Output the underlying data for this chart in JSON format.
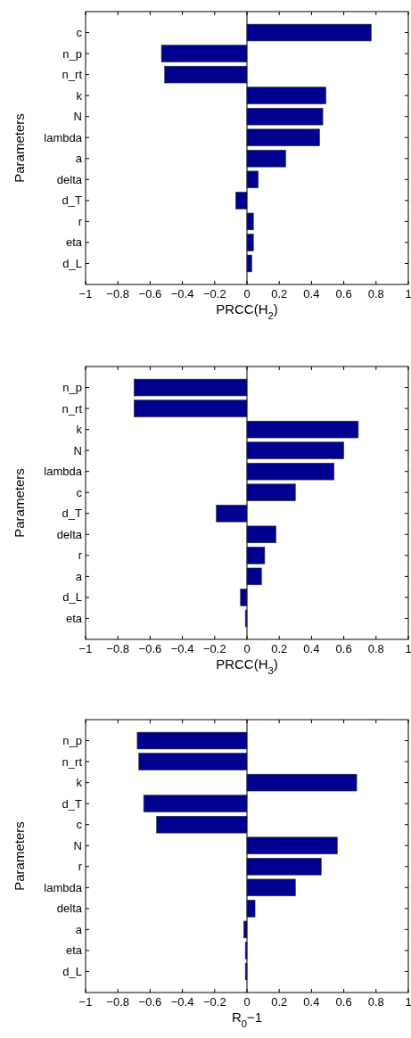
{
  "chart_data": [
    {
      "type": "bar",
      "orientation": "horizontal",
      "xlabel": "PRCC(H$_{2}$)",
      "ylabel": "Parameters",
      "categories": [
        "c",
        "n_p",
        "n_rt",
        "k",
        "N",
        "lambda",
        "a",
        "delta",
        "d_T",
        "r",
        "eta",
        "d_L"
      ],
      "values": [
        0.77,
        -0.53,
        -0.51,
        0.49,
        0.47,
        0.45,
        0.24,
        0.07,
        -0.07,
        0.04,
        0.04,
        0.03
      ],
      "color": "#00008f",
      "xlim": [
        -1,
        1
      ],
      "xticks": [
        -1,
        -0.8,
        -0.6,
        -0.4,
        -0.2,
        0,
        0.2,
        0.4,
        0.6,
        0.8,
        1
      ],
      "ref_lines": [
        {
          "axis": "x",
          "value": 0,
          "color": "#000000"
        }
      ],
      "grid": false
    },
    {
      "type": "bar",
      "orientation": "horizontal",
      "xlabel": "PRCC(H$_{3}$)",
      "ylabel": "Parameters",
      "categories": [
        "n_p",
        "n_rt",
        "k",
        "N",
        "lambda",
        "c",
        "d_T",
        "delta",
        "r",
        "a",
        "d_L",
        "eta"
      ],
      "values": [
        -0.7,
        -0.7,
        0.69,
        0.6,
        0.54,
        0.3,
        -0.19,
        0.18,
        0.11,
        0.09,
        -0.04,
        -0.01
      ],
      "color": "#00008f",
      "xlim": [
        -1,
        1
      ],
      "xticks": [
        -1,
        -0.8,
        -0.6,
        -0.4,
        -0.2,
        0,
        0.2,
        0.4,
        0.6,
        0.8,
        1
      ],
      "ref_lines": [
        {
          "axis": "x",
          "value": 0,
          "color": "#000000"
        }
      ],
      "grid": false
    },
    {
      "type": "bar",
      "orientation": "horizontal",
      "xlabel": "R$_{0}$−1",
      "ylabel": "Parameters",
      "categories": [
        "n_p",
        "n_rt",
        "k",
        "d_T",
        "c",
        "N",
        "r",
        "lambda",
        "delta",
        "a",
        "eta",
        "d_L"
      ],
      "values": [
        -0.68,
        -0.67,
        0.68,
        -0.64,
        -0.56,
        0.56,
        0.46,
        0.3,
        0.05,
        -0.02,
        -0.01,
        -0.01
      ],
      "color": "#00008f",
      "xlim": [
        -1,
        1
      ],
      "xticks": [
        -1,
        -0.8,
        -0.6,
        -0.4,
        -0.2,
        0,
        0.2,
        0.4,
        0.6,
        0.8,
        1
      ],
      "ref_lines": [
        {
          "axis": "x",
          "value": 0,
          "color": "#000000"
        }
      ],
      "grid": false
    }
  ]
}
